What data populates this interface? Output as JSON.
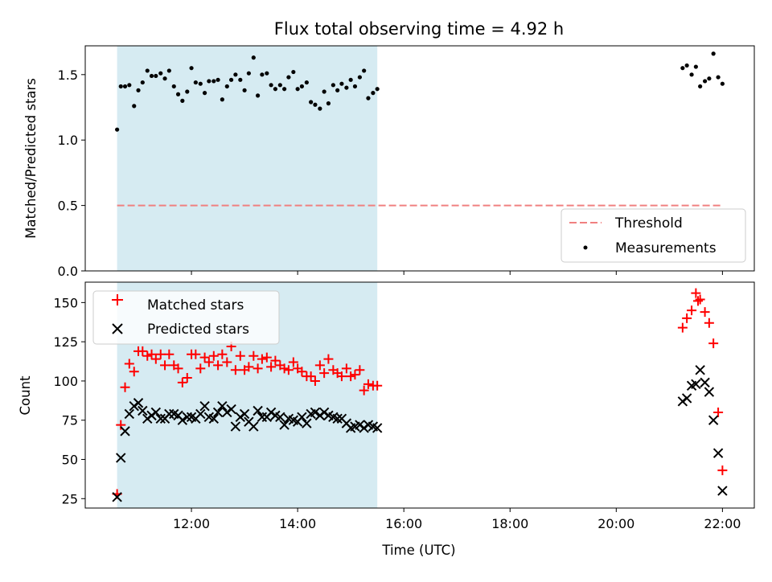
{
  "chart_data": [
    {
      "type": "scatter",
      "title": "Flux total observing time = 4.92 h",
      "ylabel": "Matched/Predicted stars",
      "xlim_hours": [
        10.0,
        22.6
      ],
      "ylim": [
        0,
        1.72
      ],
      "yticks": [
        "0.0",
        "0.5",
        "1.0",
        "1.5"
      ],
      "shaded_region_hours": [
        10.6,
        15.5
      ],
      "shade_color": "#add8e6",
      "legend_position": "lower right",
      "threshold": {
        "name": "Threshold",
        "y": 0.5,
        "x_range_hours": [
          10.6,
          22.0
        ],
        "color": "#f08080",
        "style": "dashed"
      },
      "series": [
        {
          "name": "Measurements",
          "color": "#000000",
          "x_hours": [
            10.6,
            10.67,
            10.75,
            10.83,
            10.92,
            11.0,
            11.08,
            11.17,
            11.25,
            11.33,
            11.42,
            11.5,
            11.58,
            11.67,
            11.75,
            11.83,
            11.92,
            12.0,
            12.08,
            12.17,
            12.25,
            12.33,
            12.42,
            12.5,
            12.58,
            12.67,
            12.75,
            12.83,
            12.92,
            13.0,
            13.08,
            13.17,
            13.25,
            13.33,
            13.42,
            13.5,
            13.58,
            13.67,
            13.75,
            13.83,
            13.92,
            14.0,
            14.08,
            14.17,
            14.25,
            14.33,
            14.42,
            14.5,
            14.58,
            14.67,
            14.75,
            14.83,
            14.92,
            15.0,
            15.08,
            15.17,
            15.25,
            15.33,
            15.42,
            15.5,
            21.25,
            21.33,
            21.42,
            21.5,
            21.58,
            21.67,
            21.75,
            21.83,
            21.92,
            22.0
          ],
          "y": [
            1.08,
            1.41,
            1.41,
            1.42,
            1.26,
            1.38,
            1.44,
            1.53,
            1.49,
            1.49,
            1.51,
            1.47,
            1.53,
            1.41,
            1.35,
            1.3,
            1.37,
            1.55,
            1.44,
            1.43,
            1.36,
            1.45,
            1.45,
            1.46,
            1.31,
            1.41,
            1.46,
            1.5,
            1.46,
            1.38,
            1.51,
            1.63,
            1.34,
            1.5,
            1.51,
            1.42,
            1.39,
            1.42,
            1.39,
            1.48,
            1.52,
            1.39,
            1.41,
            1.44,
            1.29,
            1.27,
            1.24,
            1.37,
            1.28,
            1.42,
            1.38,
            1.43,
            1.4,
            1.46,
            1.41,
            1.48,
            1.53,
            1.32,
            1.36,
            1.39,
            1.55,
            1.57,
            1.5,
            1.56,
            1.41,
            1.45,
            1.47,
            1.66,
            1.48,
            1.43
          ]
        }
      ]
    },
    {
      "type": "scatter",
      "xlabel": "Time (UTC)",
      "ylabel": "Count",
      "xlim_hours": [
        10.0,
        22.6
      ],
      "ylim": [
        19,
        163
      ],
      "yticks": [
        "25",
        "50",
        "75",
        "100",
        "125",
        "150"
      ],
      "xticks": [
        "12:00",
        "14:00",
        "16:00",
        "18:00",
        "20:00",
        "22:00"
      ],
      "shaded_region_hours": [
        10.6,
        15.5
      ],
      "shade_color": "#add8e6",
      "legend_position": "upper left",
      "series": [
        {
          "name": "Matched stars",
          "marker": "plus",
          "color": "#ff0000",
          "x_hours": [
            10.6,
            10.67,
            10.75,
            10.83,
            10.92,
            11.0,
            11.08,
            11.17,
            11.25,
            11.33,
            11.42,
            11.5,
            11.58,
            11.67,
            11.75,
            11.83,
            11.92,
            12.0,
            12.08,
            12.17,
            12.25,
            12.33,
            12.42,
            12.5,
            12.58,
            12.67,
            12.75,
            12.83,
            12.92,
            13.0,
            13.08,
            13.17,
            13.25,
            13.33,
            13.42,
            13.5,
            13.58,
            13.67,
            13.75,
            13.83,
            13.92,
            14.0,
            14.08,
            14.17,
            14.25,
            14.33,
            14.42,
            14.5,
            14.58,
            14.67,
            14.75,
            14.83,
            14.92,
            15.0,
            15.08,
            15.17,
            15.25,
            15.33,
            15.42,
            15.5,
            21.25,
            21.33,
            21.42,
            21.5,
            21.54,
            21.58,
            21.67,
            21.75,
            21.83,
            21.92,
            22.0
          ],
          "y": [
            28,
            72,
            96,
            111,
            106,
            119,
            119,
            116,
            117,
            114,
            117,
            110,
            117,
            110,
            108,
            99,
            102,
            117,
            117,
            108,
            115,
            112,
            116,
            110,
            117,
            112,
            122,
            107,
            116,
            107,
            109,
            116,
            108,
            114,
            115,
            109,
            113,
            110,
            108,
            107,
            112,
            108,
            106,
            103,
            103,
            100,
            110,
            105,
            114,
            107,
            105,
            103,
            108,
            103,
            104,
            107,
            94,
            98,
            97,
            97,
            134,
            140,
            145,
            156,
            151,
            152,
            144,
            137,
            124,
            80,
            43
          ]
        },
        {
          "name": "Predicted stars",
          "marker": "x",
          "color": "#000000",
          "x_hours": [
            10.6,
            10.67,
            10.75,
            10.83,
            10.92,
            11.0,
            11.08,
            11.17,
            11.25,
            11.33,
            11.42,
            11.5,
            11.58,
            11.67,
            11.75,
            11.83,
            11.92,
            12.0,
            12.08,
            12.17,
            12.25,
            12.33,
            12.42,
            12.5,
            12.58,
            12.67,
            12.75,
            12.83,
            12.92,
            13.0,
            13.08,
            13.17,
            13.25,
            13.33,
            13.42,
            13.5,
            13.58,
            13.67,
            13.75,
            13.83,
            13.92,
            14.0,
            14.08,
            14.17,
            14.25,
            14.33,
            14.42,
            14.5,
            14.58,
            14.67,
            14.75,
            14.83,
            14.92,
            15.0,
            15.08,
            15.17,
            15.25,
            15.33,
            15.42,
            15.5,
            21.25,
            21.33,
            21.42,
            21.5,
            21.58,
            21.67,
            21.75,
            21.83,
            21.92,
            22.0
          ],
          "y": [
            26,
            51,
            68,
            79,
            84,
            86,
            81,
            76,
            78,
            80,
            76,
            76,
            79,
            79,
            78,
            75,
            77,
            77,
            76,
            79,
            84,
            77,
            76,
            80,
            84,
            80,
            82,
            71,
            77,
            79,
            74,
            71,
            81,
            77,
            77,
            80,
            78,
            77,
            72,
            76,
            75,
            74,
            77,
            73,
            79,
            80,
            78,
            80,
            78,
            77,
            76,
            76,
            73,
            70,
            71,
            72,
            70,
            72,
            71,
            70,
            87,
            89,
            97,
            98,
            107,
            99,
            93,
            75,
            54,
            30
          ]
        }
      ]
    }
  ]
}
